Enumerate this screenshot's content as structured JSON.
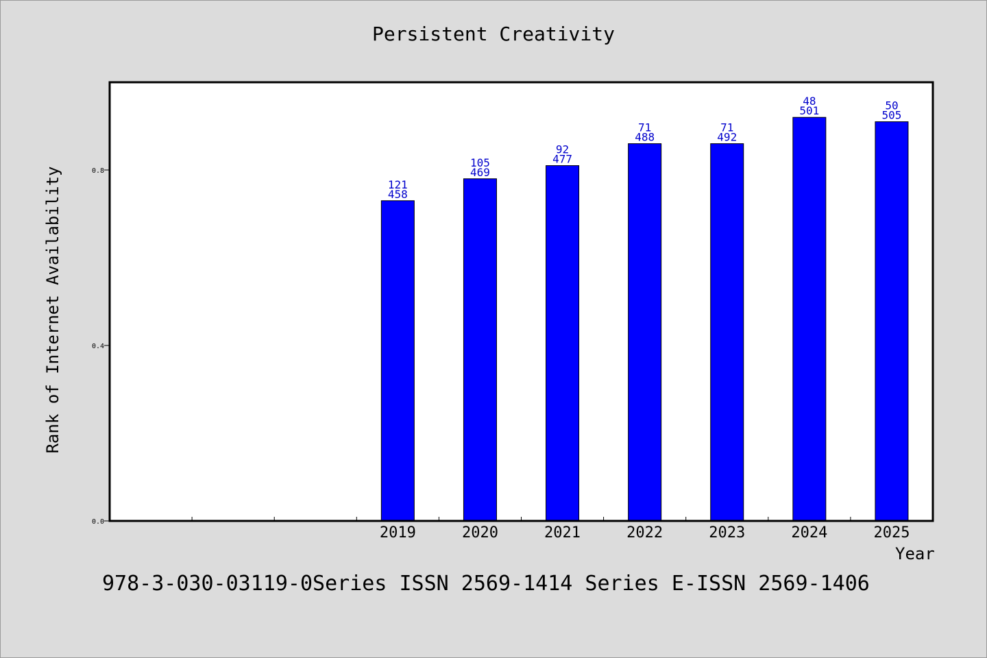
{
  "chart_data": {
    "type": "bar",
    "title": "Persistent Creativity",
    "xlabel": "Year",
    "ylabel": "Rank of Internet Availability",
    "categories": [
      "",
      "",
      "",
      "2019",
      "2020",
      "2021",
      "2022",
      "2023",
      "2024",
      "2025"
    ],
    "values": [
      null,
      null,
      null,
      0.73,
      0.78,
      0.81,
      0.86,
      0.86,
      0.92,
      0.91
    ],
    "bar_labels": [
      [
        "",
        ""
      ],
      [
        "",
        ""
      ],
      [
        "",
        ""
      ],
      [
        "121",
        "458"
      ],
      [
        "105",
        "469"
      ],
      [
        "92",
        "477"
      ],
      [
        "71",
        "488"
      ],
      [
        "71",
        "492"
      ],
      [
        "48",
        "501"
      ],
      [
        "50",
        "505"
      ]
    ],
    "ylim": [
      0,
      1.0
    ],
    "yticks": [
      "0.0",
      "0.4",
      "0.8"
    ],
    "ytick_values": [
      0.0,
      0.4,
      0.8
    ],
    "grid": false,
    "bar_color": "#0000ff",
    "label_color": "#0000cc"
  },
  "footer": "978-3-030-03119-0Series ISSN 2569-1414 Series E-ISSN 2569-1406"
}
